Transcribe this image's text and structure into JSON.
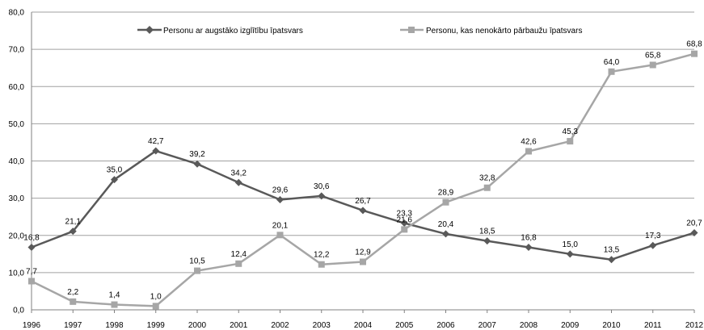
{
  "chart_data": {
    "type": "line",
    "title": "",
    "xlabel": "",
    "ylabel": "",
    "x": [
      "1996",
      "1997",
      "1998",
      "1999",
      "2000",
      "2001",
      "2002",
      "2003",
      "2004",
      "2005",
      "2006",
      "2007",
      "2008",
      "2009",
      "2010",
      "2011",
      "2012"
    ],
    "ylim": [
      0,
      80
    ],
    "yticks": [
      "0,0",
      "10,0",
      "20,0",
      "30,0",
      "40,0",
      "50,0",
      "60,0",
      "70,0",
      "80,0"
    ],
    "grid": true,
    "legend_position": "top",
    "series": [
      {
        "name": "Personu ar augstāko izglītību īpatsvars",
        "color": "#595959",
        "marker": "diamond",
        "values": [
          16.8,
          21.1,
          35.0,
          42.7,
          39.2,
          34.2,
          29.6,
          30.6,
          26.7,
          23.3,
          20.4,
          18.5,
          16.8,
          15.0,
          13.5,
          17.3,
          20.7
        ],
        "labels": [
          "16,8",
          "21,1",
          "35,0",
          "42,7",
          "39,2",
          "34,2",
          "29,6",
          "30,6",
          "26,7",
          "23,3",
          "20,4",
          "18,5",
          "16,8",
          "15,0",
          "13,5",
          "17,3",
          "20,7"
        ]
      },
      {
        "name": "Personu, kas nenokārto pārbaužu īpatsvars",
        "color": "#a6a6a6",
        "marker": "square",
        "values": [
          7.7,
          2.2,
          1.4,
          1.0,
          10.5,
          12.4,
          20.1,
          12.2,
          12.9,
          21.6,
          28.9,
          32.8,
          42.6,
          45.3,
          64.0,
          65.8,
          68.8
        ],
        "labels": [
          "7,7",
          "2,2",
          "1,4",
          "1,0",
          "10,5",
          "12,4",
          "20,1",
          "12,2",
          "12,9",
          "21,6",
          "28,9",
          "32,8",
          "42,6",
          "45,3",
          "64,0",
          "65,8",
          "68,8"
        ]
      }
    ]
  }
}
